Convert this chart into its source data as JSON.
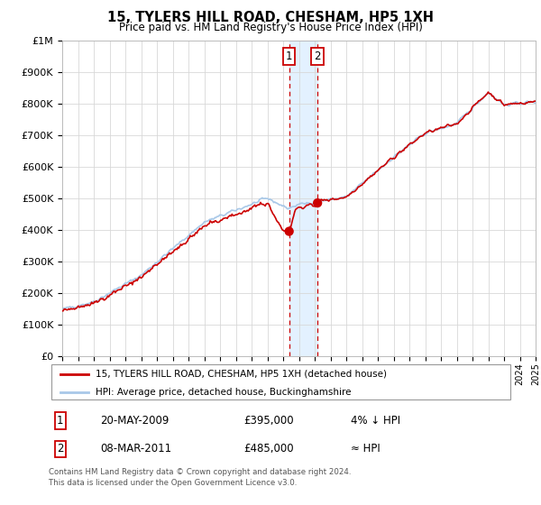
{
  "title": "15, TYLERS HILL ROAD, CHESHAM, HP5 1XH",
  "subtitle": "Price paid vs. HM Land Registry's House Price Index (HPI)",
  "legend_line1": "15, TYLERS HILL ROAD, CHESHAM, HP5 1XH (detached house)",
  "legend_line2": "HPI: Average price, detached house, Buckinghamshire",
  "note1_date": "20-MAY-2009",
  "note1_price": "£395,000",
  "note1_hpi": "4% ↓ HPI",
  "note2_date": "08-MAR-2011",
  "note2_price": "£485,000",
  "note2_hpi": "≈ HPI",
  "footer1": "Contains HM Land Registry data © Crown copyright and database right 2024.",
  "footer2": "This data is licensed under the Open Government Licence v3.0.",
  "sale1_year": 2009.38,
  "sale1_value": 395000,
  "sale2_year": 2011.18,
  "sale2_value": 485000,
  "hpi_color": "#a8c8e8",
  "price_color": "#cc0000",
  "sale_dot_color": "#cc0000",
  "vline_color": "#cc0000",
  "shade_color": "#ddeeff",
  "ylim": [
    0,
    1000000
  ],
  "xlim_start": 1995,
  "xlim_end": 2025,
  "yticks": [
    0,
    100000,
    200000,
    300000,
    400000,
    500000,
    600000,
    700000,
    800000,
    900000,
    1000000
  ],
  "ytick_labels": [
    "£0",
    "£100K",
    "£200K",
    "£300K",
    "£400K",
    "£500K",
    "£600K",
    "£700K",
    "£800K",
    "£900K",
    "£1M"
  ]
}
